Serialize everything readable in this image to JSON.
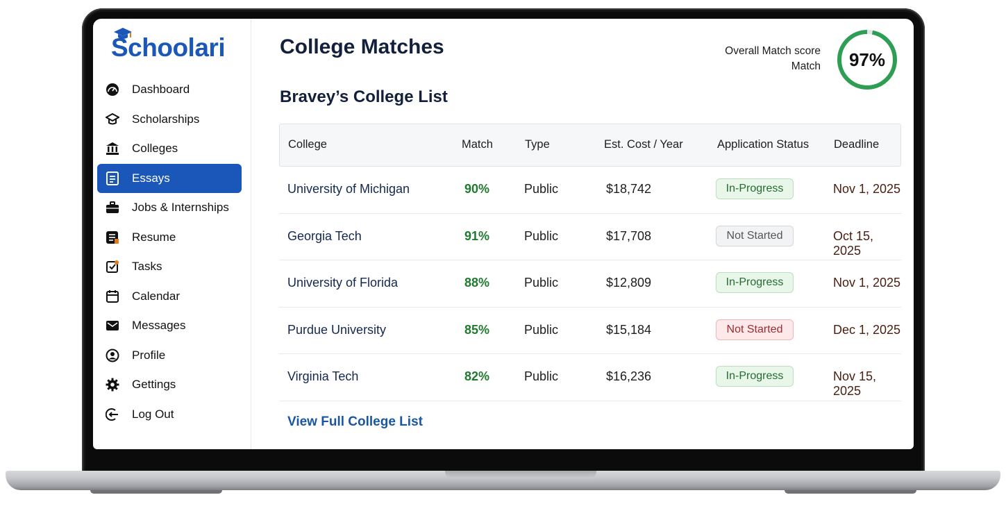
{
  "app": {
    "logo_text": "Schoolari",
    "brand_color": "#1a57b8"
  },
  "sidebar": {
    "active_index": 3,
    "items": [
      {
        "label": "Dashboard",
        "icon": "dashboard-gauge-icon"
      },
      {
        "label": "Scholarships",
        "icon": "graduation-cap-icon"
      },
      {
        "label": "Colleges",
        "icon": "institution-icon"
      },
      {
        "label": "Essays",
        "icon": "document-icon"
      },
      {
        "label": "Jobs & Internships",
        "icon": "briefcase-icon"
      },
      {
        "label": "Resume",
        "icon": "resume-icon"
      },
      {
        "label": "Tasks",
        "icon": "task-check-icon"
      },
      {
        "label": "Calendar",
        "icon": "calendar-icon"
      },
      {
        "label": "Messages",
        "icon": "envelope-icon"
      },
      {
        "label": "Profile",
        "icon": "user-circle-icon"
      },
      {
        "label": "Gettings",
        "icon": "gear-icon"
      },
      {
        "label": "Log Out",
        "icon": "logout-icon"
      }
    ]
  },
  "header": {
    "title": "College Matches",
    "score_label_line1": "Overall Match score",
    "score_label_line2": "Match",
    "score_value": "97%",
    "score_fraction": 0.97,
    "ring_color": "#2e9e55",
    "ring_track_color": "#e2e5e8"
  },
  "list": {
    "title": "Bravey’s College List",
    "columns": [
      "College",
      "Match",
      "Type",
      "Est. Cost / Year",
      "Application Status",
      "Deadline"
    ],
    "rows": [
      {
        "college": "University of Michigan",
        "match": "90%",
        "type": "Public",
        "cost": "$18,742",
        "status": "In-Progress",
        "status_style": "inprogress",
        "deadline": "Nov 1, 2025"
      },
      {
        "college": "Georgia Tech",
        "match": "91%",
        "type": "Public",
        "cost": "$17,708",
        "status": "Not Started",
        "status_style": "notstarted",
        "deadline": "Oct 15, 2025"
      },
      {
        "college": "University of Florida",
        "match": "88%",
        "type": "Public",
        "cost": "$12,809",
        "status": "In-Progress",
        "status_style": "inprogress",
        "deadline": "Nov 1, 2025"
      },
      {
        "college": "Purdue University",
        "match": "85%",
        "type": "Public",
        "cost": "$15,184",
        "status": "Not Started",
        "status_style": "notstarted-red",
        "deadline": "Dec 1, 2025"
      },
      {
        "college": "Virginia Tech",
        "match": "82%",
        "type": "Public",
        "cost": "$16,236",
        "status": "In-Progress",
        "status_style": "inprogress",
        "deadline": "Nov 15, 2025"
      }
    ],
    "view_full_link": "View Full College List"
  }
}
